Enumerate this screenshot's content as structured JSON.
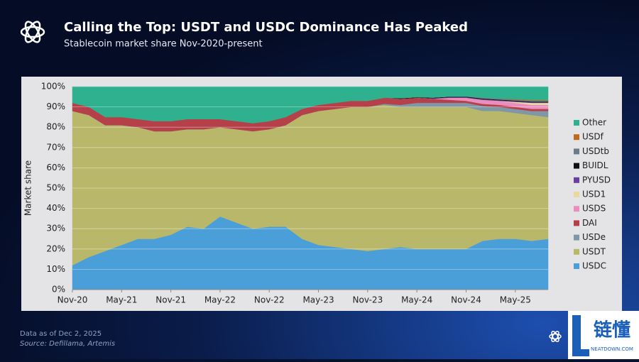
{
  "header": {
    "title": "Calling the Top: USDT and USDC Dominance Has Peaked",
    "subtitle": "Stablecoin market share Nov-2020-present"
  },
  "footer": {
    "note": "Data as of Dec 2, 2025",
    "source": "Source: Defillama, Artemis",
    "watermark": "链懂",
    "watermark_sub": "NEATDOWN.COM"
  },
  "chart_data": {
    "type": "stacked_area",
    "ylabel": "Market share",
    "categories": [
      "Nov-20",
      null,
      null,
      "May-21",
      null,
      null,
      "Nov-21",
      null,
      null,
      "May-22",
      null,
      null,
      "Nov-22",
      null,
      null,
      "May-23",
      null,
      null,
      "Nov-23",
      null,
      null,
      "May-24",
      null,
      null,
      "Nov-24",
      null,
      null,
      "May-25",
      null,
      null
    ],
    "ylim": [
      0,
      100
    ],
    "yticks": [
      {
        "value": 0,
        "label": "0%"
      },
      {
        "value": 10,
        "label": "10%"
      },
      {
        "value": 20,
        "label": "20%"
      },
      {
        "value": 30,
        "label": "30%"
      },
      {
        "value": 40,
        "label": "40%"
      },
      {
        "value": 50,
        "label": "50%"
      },
      {
        "value": 60,
        "label": "60%"
      },
      {
        "value": 70,
        "label": "70%"
      },
      {
        "value": 80,
        "label": "80%"
      },
      {
        "value": 90,
        "label": "90%"
      },
      {
        "value": 100,
        "label": "100%"
      }
    ],
    "grid": true,
    "legend": "right",
    "series": [
      {
        "name": "USDC",
        "color": "#4a9fd8",
        "values": [
          12,
          16,
          19,
          22,
          25,
          25,
          27,
          31,
          30,
          36,
          33,
          30,
          31,
          31,
          25,
          22,
          21,
          20,
          19,
          20,
          21,
          20,
          20,
          20,
          20,
          24,
          25,
          25,
          24,
          25
        ]
      },
      {
        "name": "USDT",
        "color": "#b9b86a",
        "values": [
          76,
          70,
          62,
          59,
          55,
          53,
          51,
          48,
          49,
          44,
          46,
          48,
          48,
          50,
          61,
          66,
          68,
          70,
          71,
          71,
          69,
          70,
          70,
          70,
          70,
          64,
          63,
          62,
          62,
          60
        ]
      },
      {
        "name": "USDe",
        "color": "#7f97a6",
        "values": [
          0,
          0,
          0,
          0,
          0,
          0,
          0,
          0,
          0,
          0,
          0,
          0,
          0,
          0,
          0,
          0,
          0,
          0,
          0,
          0.5,
          1,
          2,
          2,
          2,
          2,
          2.5,
          2,
          2,
          2,
          3
        ]
      },
      {
        "name": "DAI",
        "color": "#b5404a",
        "values": [
          4,
          4,
          4,
          4,
          4,
          5,
          5,
          5,
          5,
          4,
          4,
          4,
          4,
          4,
          3,
          3,
          3,
          3,
          3,
          3,
          3,
          2.5,
          2,
          1.5,
          1,
          1,
          1,
          1,
          1,
          1
        ]
      },
      {
        "name": "USDS",
        "color": "#e88fc0",
        "values": [
          0,
          0,
          0,
          0,
          0,
          0,
          0,
          0,
          0,
          0,
          0,
          0,
          0,
          0,
          0,
          0,
          0,
          0,
          0,
          0,
          0,
          0,
          0,
          1,
          1.5,
          2,
          2,
          2,
          2,
          2
        ]
      },
      {
        "name": "USD1",
        "color": "#e8d9a0",
        "values": [
          0,
          0,
          0,
          0,
          0,
          0,
          0,
          0,
          0,
          0,
          0,
          0,
          0,
          0,
          0,
          0,
          0,
          0,
          0,
          0,
          0,
          0,
          0,
          0,
          0,
          0,
          0,
          0.5,
          1,
          1
        ]
      },
      {
        "name": "PYUSD",
        "color": "#6a3fa0",
        "values": [
          0,
          0,
          0,
          0,
          0,
          0,
          0,
          0,
          0,
          0,
          0,
          0,
          0,
          0,
          0,
          0,
          0,
          0,
          0,
          0,
          0,
          0,
          0.3,
          0.3,
          0.3,
          0.3,
          0.3,
          0.3,
          0.3,
          0.3
        ]
      },
      {
        "name": "BUIDL",
        "color": "#111111",
        "values": [
          0,
          0,
          0,
          0,
          0,
          0,
          0,
          0,
          0,
          0,
          0,
          0,
          0,
          0,
          0,
          0,
          0,
          0,
          0,
          0,
          0.3,
          0.3,
          0.3,
          0.3,
          0.3,
          0.3,
          0.3,
          0.3,
          0.3,
          0.3
        ]
      },
      {
        "name": "USDtb",
        "color": "#6b7b8a",
        "values": [
          0,
          0,
          0,
          0,
          0,
          0,
          0,
          0,
          0,
          0,
          0,
          0,
          0,
          0,
          0,
          0,
          0,
          0,
          0,
          0,
          0,
          0,
          0,
          0,
          0,
          0.5,
          0.5,
          0.5,
          0.5,
          0.5
        ]
      },
      {
        "name": "USDf",
        "color": "#c06a20",
        "values": [
          0,
          0,
          0,
          0,
          0,
          0,
          0,
          0,
          0,
          0,
          0,
          0,
          0,
          0,
          0,
          0,
          0,
          0,
          0,
          0,
          0,
          0,
          0,
          0,
          0,
          0,
          0,
          0.3,
          0.3,
          0.3
        ]
      },
      {
        "name": "Other",
        "color": "#2fb08f",
        "values": [
          8,
          10,
          15,
          15,
          16,
          17,
          17,
          16,
          16,
          16,
          17,
          18,
          17,
          15,
          11,
          9,
          8,
          7,
          7,
          5.5,
          5.7,
          5.2,
          5.4,
          4.9,
          4.9,
          5.4,
          5.9,
          6.1,
          6.6,
          6.6
        ]
      }
    ]
  }
}
